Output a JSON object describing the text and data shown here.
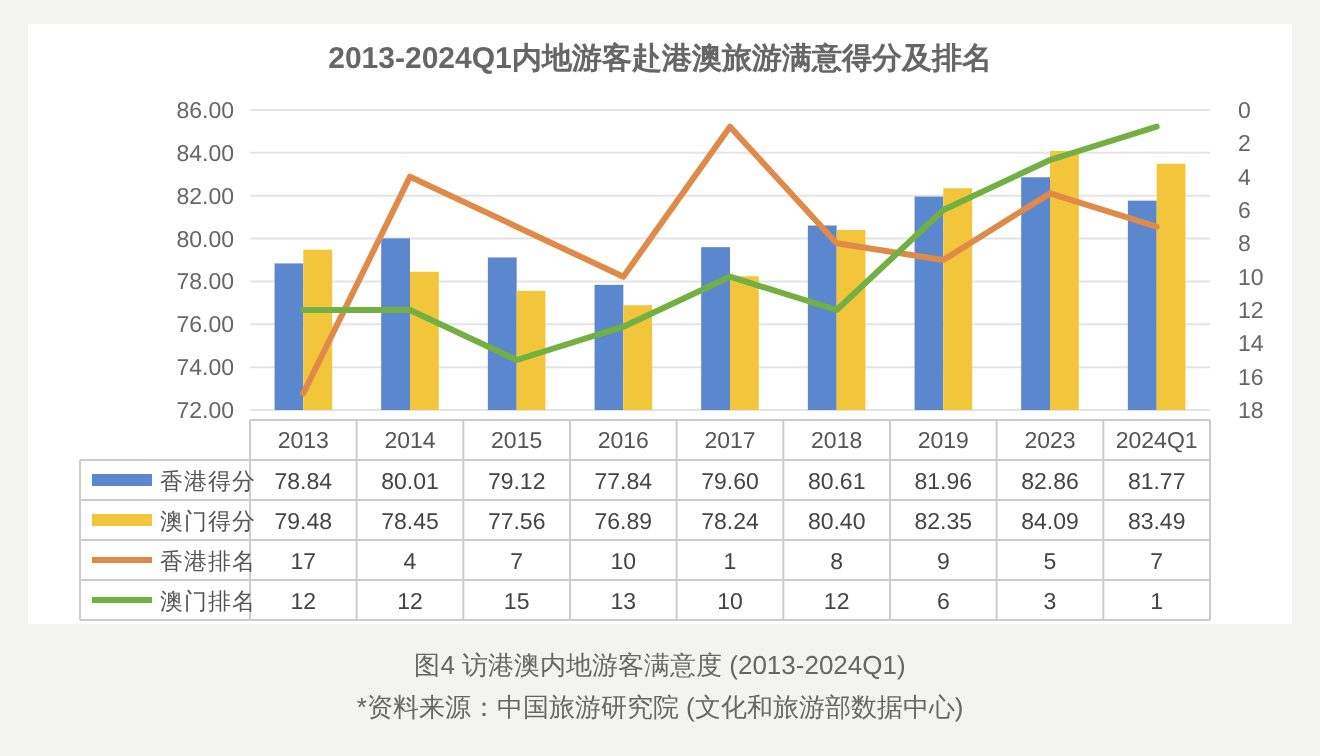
{
  "chart_data": {
    "type": "bar",
    "title": "2013-2024Q1内地游客赴港澳旅游满意得分及排名",
    "categories": [
      "2013",
      "2014",
      "2015",
      "2016",
      "2017",
      "2018",
      "2019",
      "2023",
      "2024Q1"
    ],
    "series": [
      {
        "name": "香港得分",
        "color": "#5b87cf",
        "values": [
          78.84,
          80.01,
          79.12,
          77.84,
          79.6,
          80.61,
          81.96,
          82.86,
          81.77
        ],
        "value_labels": [
          "78.84",
          "80.01",
          "79.12",
          "77.84",
          "79.60",
          "80.61",
          "81.96",
          "82.86",
          "81.77"
        ]
      },
      {
        "name": "澳门得分",
        "color": "#f2c53a",
        "values": [
          79.48,
          78.45,
          77.56,
          76.89,
          78.24,
          80.4,
          82.35,
          84.09,
          83.49
        ],
        "value_labels": [
          "79.48",
          "78.45",
          "77.56",
          "76.89",
          "78.24",
          "80.40",
          "82.35",
          "84.09",
          "83.49"
        ]
      },
      {
        "name": "香港排名",
        "type": "line",
        "axis": "y2",
        "color": "#e08a4a",
        "values": [
          17,
          4,
          7,
          10,
          1,
          8,
          9,
          5,
          7
        ],
        "value_labels": [
          "17",
          "4",
          "7",
          "10",
          "1",
          "8",
          "9",
          "5",
          "7"
        ]
      },
      {
        "name": "澳门排名",
        "type": "line",
        "axis": "y2",
        "color": "#72b043",
        "values": [
          12,
          12,
          15,
          13,
          10,
          12,
          6,
          3,
          1
        ],
        "value_labels": [
          "12",
          "12",
          "15",
          "13",
          "10",
          "12",
          "6",
          "3",
          "1"
        ]
      }
    ],
    "ylim": [
      72,
      86
    ],
    "yticks": [
      {
        "value": 72,
        "label": "72.00"
      },
      {
        "value": 74,
        "label": "74.00"
      },
      {
        "value": 76,
        "label": "76.00"
      },
      {
        "value": 78,
        "label": "78.00"
      },
      {
        "value": 80,
        "label": "80.00"
      },
      {
        "value": 82,
        "label": "82.00"
      },
      {
        "value": 84,
        "label": "84.00"
      },
      {
        "value": 86,
        "label": "86.00"
      }
    ],
    "y2lim": [
      18,
      0
    ],
    "y2ticks": [
      0,
      2,
      4,
      6,
      8,
      10,
      12,
      14,
      16,
      18
    ],
    "grid": "y",
    "legend": "bottom",
    "annotations": [
      "图4 访港澳内地游客满意度 (2013-2024Q1)",
      "*资料来源：中国旅游研究院 (文化和旅游部数据中心)"
    ]
  }
}
